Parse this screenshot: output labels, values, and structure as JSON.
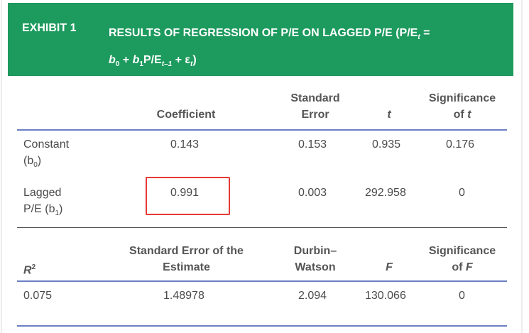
{
  "header": {
    "exhibit_label": "EXHIBIT 1",
    "title_line1": "RESULTS OF REGRESSION OF P/E ON LAGGED P/E (P/E",
    "title_line1_sub": "t",
    "title_line1_end": " =",
    "title_line2_b0": "b",
    "title_line2_b0_sub": "0",
    "title_line2_plus1": " + ",
    "title_line2_b1": "b",
    "title_line2_b1_sub": "1",
    "title_line2_pe": "P/E",
    "title_line2_pe_sub": "t–1",
    "title_line2_eps": " + ε",
    "title_line2_eps_sub": "t",
    "title_line2_end": ")"
  },
  "table1": {
    "headers": {
      "coefficient": "Coefficient",
      "std_error_1": "Standard",
      "std_error_2": "Error",
      "t": "t",
      "sig_1": "Significance",
      "sig_2": "of t"
    },
    "rows": [
      {
        "label_1": "Constant",
        "label_2_pre": "(b",
        "label_2_sub": "0",
        "label_2_post": ")",
        "coefficient": "0.143",
        "std_error": "0.153",
        "t": "0.935",
        "significance": "0.176"
      },
      {
        "label_1": "Lagged",
        "label_2_pre": "P/E (b",
        "label_2_sub": "1",
        "label_2_post": ")",
        "coefficient": "0.991",
        "std_error": "0.003",
        "t": "292.958",
        "significance": "0"
      }
    ]
  },
  "table2": {
    "headers": {
      "r2": "R",
      "r2_sup": "2",
      "se_est_1": "Standard Error of the",
      "se_est_2": "Estimate",
      "dw_1": "Durbin–",
      "dw_2": "Watson",
      "f": "F",
      "sig_1": "Significance",
      "sig_2": "of F"
    },
    "row": {
      "r2": "0.075",
      "se_est": "1.48978",
      "dw": "2.094",
      "f": "130.066",
      "sig": "0"
    }
  },
  "colors": {
    "header_bg": "#1d9a5e",
    "rule_blue": "#6b7fc4",
    "highlight_red": "#e53935"
  }
}
